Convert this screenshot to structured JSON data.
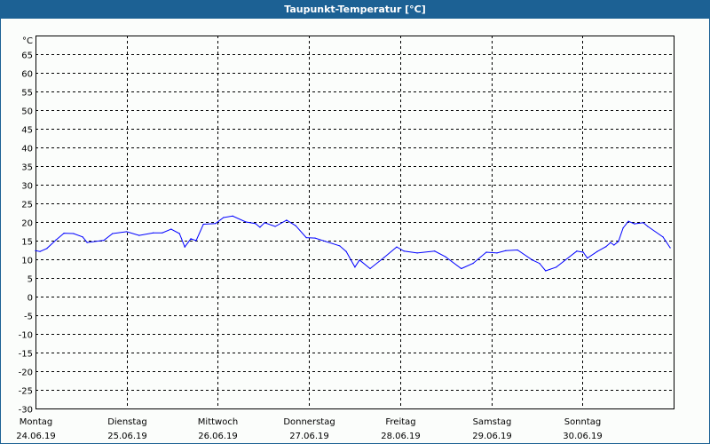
{
  "title": "Taupunkt-Temperatur [°C]",
  "colors": {
    "titlebar": "#1c6194",
    "series": "#0000ff",
    "grid": "#000000"
  },
  "chart_data": {
    "type": "line",
    "title": "Taupunkt-Temperatur [°C]",
    "ylabel": "°C",
    "xlabel": "",
    "ylim": [
      -30,
      70
    ],
    "yticks": [
      65,
      60,
      55,
      50,
      45,
      40,
      35,
      30,
      25,
      20,
      15,
      10,
      5,
      0,
      -5,
      -10,
      -15,
      -20,
      -25,
      -30
    ],
    "xlim_hours": [
      0,
      168
    ],
    "grid": true,
    "x_categories": [
      {
        "day": "Montag",
        "date": "24.06.19"
      },
      {
        "day": "Dienstag",
        "date": "25.06.19"
      },
      {
        "day": "Mittwoch",
        "date": "26.06.19"
      },
      {
        "day": "Donnerstag",
        "date": "27.06.19"
      },
      {
        "day": "Freitag",
        "date": "28.06.19"
      },
      {
        "day": "Samstag",
        "date": "29.06.19"
      },
      {
        "day": "Sonntag",
        "date": "30.06.19"
      }
    ],
    "series": [
      {
        "name": "Taupunkt",
        "x_hours": [
          0,
          1.2,
          3,
          5.4,
          7.5,
          10,
          12.4,
          13.6,
          18,
          20.3,
          24,
          27.3,
          31,
          33.4,
          35.7,
          37.9,
          39.3,
          40.9,
          42.3,
          44.2,
          47.4,
          49.5,
          51.9,
          55.4,
          57.9,
          59.1,
          60.3,
          63.1,
          66.1,
          68.5,
          71.3,
          73.6,
          80.1,
          81.8,
          84.1,
          85.3,
          88.1,
          91.8,
          95.1,
          97,
          100.5,
          105.1,
          107.9,
          112.1,
          115.2,
          118.7,
          121.5,
          123.8,
          126.9,
          130.8,
          132.7,
          134.3,
          137.1,
          142.5,
          144.2,
          145.3,
          147.9,
          150.2,
          151.4,
          152.3,
          153.5,
          154.7,
          156.1,
          157.7,
          160,
          161.2,
          165.2,
          167.1
        ],
        "values": [
          12.3,
          12.1,
          12.9,
          15.2,
          17,
          16.9,
          16,
          14.5,
          15.1,
          16.9,
          17.4,
          16.4,
          17.1,
          17.1,
          18.1,
          16.9,
          13.3,
          15.5,
          15,
          19.4,
          19.6,
          21.2,
          21.6,
          20,
          19.6,
          18.6,
          19.8,
          18.8,
          20.5,
          19,
          15.8,
          15.7,
          13.6,
          12.1,
          7.9,
          9.8,
          7.5,
          10.5,
          13.3,
          12.2,
          11.7,
          12.2,
          10.7,
          7.5,
          8.9,
          11.9,
          11.7,
          12.3,
          12.5,
          9.8,
          8.9,
          6.9,
          7.9,
          12.2,
          11.9,
          10.3,
          12.1,
          13.4,
          14.5,
          13.8,
          14.8,
          18.4,
          20.2,
          19.5,
          19.8,
          18.8,
          16,
          13.1
        ]
      }
    ]
  }
}
